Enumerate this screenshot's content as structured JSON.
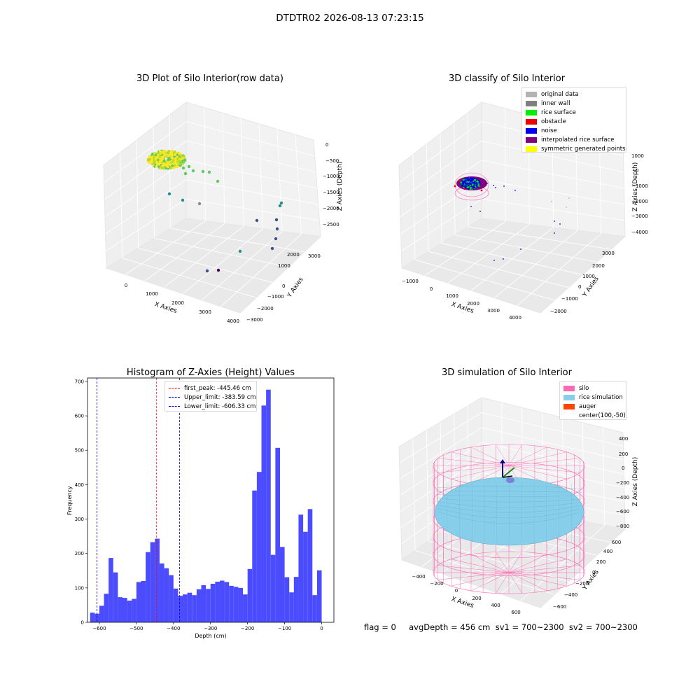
{
  "figure": {
    "suptitle": "DTDTR02 2026-08-13 07:23:15",
    "footer": "flag = 0     avgDepth = 456 cm  sv1 = 700~2300  sv2 = 700~2300"
  },
  "chart_data": [
    {
      "type": "scatter3d",
      "title": "3D Plot of Silo Interior(row data)",
      "xlabel": "X Axies",
      "ylabel": "Y Axies",
      "zlabel": "Z Axies (Depth)",
      "x_ticks": [
        "0",
        "1000",
        "2000",
        "3000",
        "4000"
      ],
      "y_ticks": [
        "−3000",
        "−2000",
        "−1000",
        "0",
        "1000",
        "2000",
        "3000"
      ],
      "z_ticks": [
        "0",
        "−500",
        "−1000",
        "−1500",
        "−2000",
        "−2500"
      ],
      "colormap": [
        "#440154",
        "#3b528b",
        "#21918c",
        "#5ec962",
        "#fde725"
      ],
      "grid": true
    },
    {
      "type": "scatter3d",
      "title": "3D classify of Silo Interior",
      "xlabel": "X Axies",
      "ylabel": "Y Axies",
      "zlabel": "Z Axies (Depth)",
      "x_ticks": [
        "−1000",
        "0",
        "1000",
        "2000",
        "3000",
        "4000"
      ],
      "y_ticks": [
        "−2000",
        "−1000",
        "0",
        "1000",
        "2000",
        "3000"
      ],
      "z_ticks": [
        "1000",
        "0",
        "−1000",
        "−2000",
        "−3000",
        "−4000"
      ],
      "legend": [
        {
          "label": "original data",
          "color": "#b3b3b3"
        },
        {
          "label": "inner wall",
          "color": "#808080"
        },
        {
          "label": "rice surface",
          "color": "#00ee00"
        },
        {
          "label": "obstacle",
          "color": "#ee0000"
        },
        {
          "label": "noise",
          "color": "#0000ee"
        },
        {
          "label": "interpolated rice surface",
          "color": "#800080"
        },
        {
          "label": "symmetric generated points",
          "color": "#ffff00"
        }
      ],
      "legend_position": "top-right",
      "grid": true
    },
    {
      "type": "bar",
      "title": "Histogram of Z-Axies (Height) Values",
      "xlabel": "Depth (cm)",
      "ylabel": "Frequency",
      "xlim": [
        -632,
        33
      ],
      "ylim": [
        0,
        710
      ],
      "x_ticks": [
        -600,
        -500,
        -400,
        -300,
        -200,
        -100,
        0
      ],
      "y_ticks": [
        0,
        100,
        200,
        300,
        400,
        500,
        600,
        700
      ],
      "bin_start": -625,
      "bin_width": 12.5,
      "values": [
        28,
        25,
        48,
        83,
        187,
        145,
        73,
        71,
        63,
        68,
        117,
        120,
        204,
        233,
        243,
        171,
        157,
        137,
        98,
        77,
        81,
        86,
        79,
        96,
        108,
        97,
        112,
        118,
        121,
        117,
        106,
        103,
        100,
        81,
        155,
        383,
        437,
        630,
        676,
        196,
        507,
        219,
        131,
        87,
        132,
        313,
        263,
        329,
        79,
        151
      ],
      "bar_color": "#4c4cff",
      "lines": [
        {
          "label": "first_peak: -445.46 cm",
          "x": -445.46,
          "color": "#ff0000"
        },
        {
          "label": "Upper_limit: -383.59 cm",
          "x": -383.59,
          "color": "#0000cc"
        },
        {
          "label": "Lower_limit: -606.33 cm",
          "x": -606.33,
          "color": "#0000cc"
        }
      ],
      "legend_position": "top-center"
    },
    {
      "type": "surface3d",
      "title": "3D simulation of Silo Interior",
      "xlabel": "X Axies",
      "ylabel": "Y Axies",
      "zlabel": "Z Axies (Depth)",
      "x_ticks": [
        "−400",
        "−200",
        "0",
        "200",
        "400",
        "600"
      ],
      "y_ticks": [
        "−600",
        "−400",
        "−200",
        "0",
        "200",
        "400",
        "600"
      ],
      "z_ticks": [
        "400",
        "200",
        "0",
        "−200",
        "−400",
        "−600",
        "−800"
      ],
      "legend": [
        {
          "label": "silo",
          "color": "#ff69b4"
        },
        {
          "label": "rice simulation",
          "color": "#87ceeb"
        },
        {
          "label": "auger",
          "color": "#ff4500"
        },
        {
          "label": "center(100,-50)",
          "color": ""
        }
      ],
      "legend_position": "top-right",
      "grid": true
    }
  ]
}
